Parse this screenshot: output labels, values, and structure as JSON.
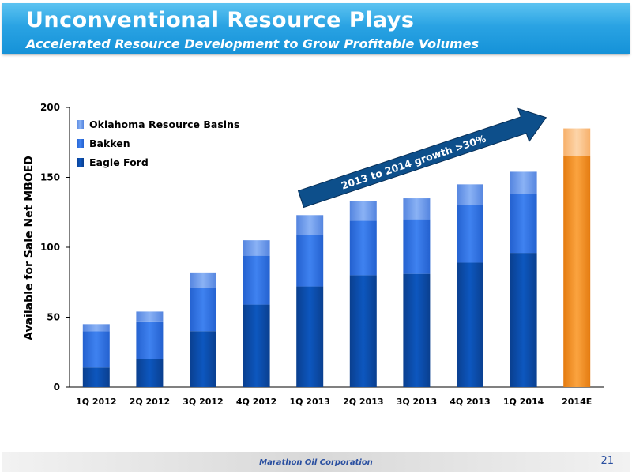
{
  "header": {
    "title": "Unconventional Resource Plays",
    "subtitle": "Accelerated Resource Development to Grow Profitable Volumes"
  },
  "footer": {
    "company": "Marathon Oil Corporation",
    "page_number": "21"
  },
  "annotation": {
    "text": "2013 to 2014 growth >30%"
  },
  "colors": {
    "eagle_ford": "#0a4aa3",
    "bakken": "#2f6fe3",
    "oklahoma": "#6d9ef0",
    "forecast_base": "#f5901e",
    "forecast_top": "#fcc48a",
    "arrow": "#0d4f8b"
  },
  "chart_data": {
    "type": "bar",
    "stacked": true,
    "categories": [
      "1Q 2012",
      "2Q 2012",
      "3Q 2012",
      "4Q 2012",
      "1Q 2013",
      "2Q 2013",
      "3Q 2013",
      "4Q 2013",
      "1Q 2014",
      "2014E"
    ],
    "series": [
      {
        "name": "Eagle Ford",
        "values": [
          14,
          20,
          40,
          59,
          72,
          80,
          81,
          89,
          96,
          null
        ]
      },
      {
        "name": "Bakken",
        "values": [
          26,
          27,
          31,
          35,
          37,
          39,
          39,
          41,
          42,
          null
        ]
      },
      {
        "name": "Oklahoma Resource Basins",
        "values": [
          5,
          7,
          11,
          11,
          14,
          14,
          15,
          15,
          16,
          null
        ]
      }
    ],
    "forecast": {
      "category": "2014E",
      "values": [
        165,
        20
      ]
    },
    "ylabel": "Available for Sale Net MBOED",
    "ylim": [
      0,
      200
    ],
    "yticks": [
      0,
      50,
      100,
      150,
      200
    ],
    "legend": [
      "Oklahoma Resource Basins",
      "Bakken",
      "Eagle Ford"
    ],
    "legend_position": "top-left",
    "grid": false
  }
}
